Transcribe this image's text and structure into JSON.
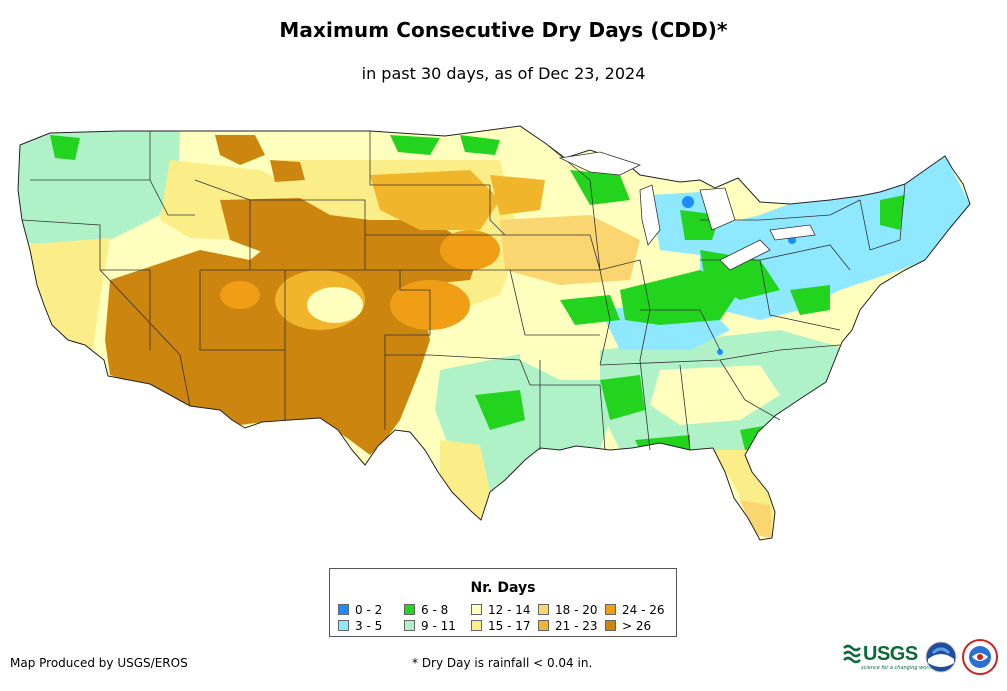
{
  "title": "Maximum Consecutive Dry Days (CDD)*",
  "subtitle": "in past 30 days, as of Dec 23, 2024",
  "legend": {
    "title": "Nr. Days",
    "items": [
      {
        "label": "0 - 2",
        "color": "#1a8cff"
      },
      {
        "label": "3 - 5",
        "color": "#8ee8ff"
      },
      {
        "label": "6 - 8",
        "color": "#22d41e"
      },
      {
        "label": "9 - 11",
        "color": "#b0f2c8"
      },
      {
        "label": "12 - 14",
        "color": "#ffffbe"
      },
      {
        "label": "15 - 17",
        "color": "#fbee88"
      },
      {
        "label": "18 - 20",
        "color": "#fbd570"
      },
      {
        "label": "21 - 23",
        "color": "#f1b52c"
      },
      {
        "label": "24 - 26",
        "color": "#f09e15"
      },
      {
        "label": "> 26",
        "color": "#cc850e"
      }
    ]
  },
  "footer": {
    "producer": "Map Produced by USGS/EROS",
    "note": "* Dry Day is rainfall < 0.04 in."
  },
  "logos": {
    "usgs_text": "USGS",
    "usgs_tagline": "science for a changing world",
    "noaa_text": "NOAA",
    "nws_text": "NWS"
  }
}
